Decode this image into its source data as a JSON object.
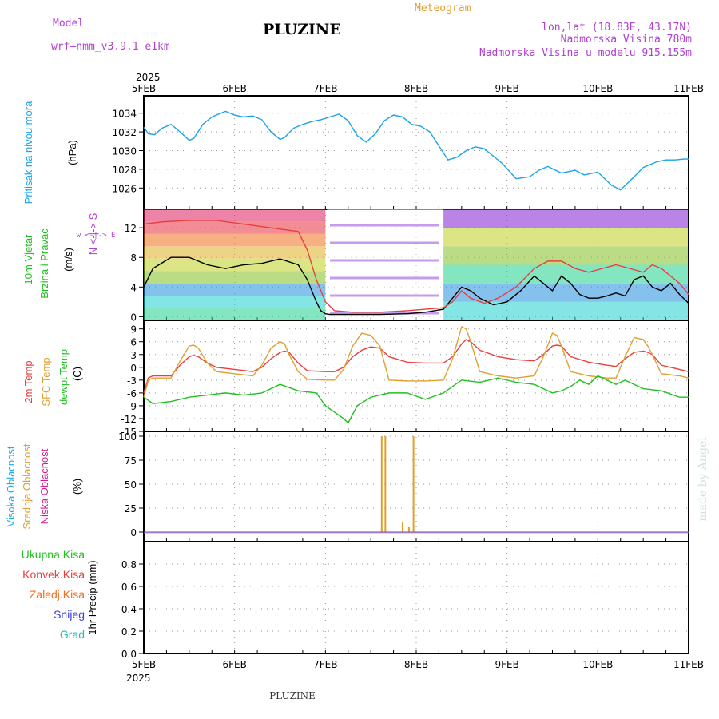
{
  "header": {
    "model_label": "Model",
    "model_name": "wrf—nmm_v3.9.1 e1km",
    "station": "PLUZINE",
    "product": "Meteogram",
    "lonlat": "lon,lat (18.83E, 43.17N)",
    "altitude": "Nadmorska Visina 780m",
    "model_altitude": "Nadmorska Visina u modelu 915.155m",
    "year_top": "2025",
    "year_bottom": "2025",
    "footer_station": "PLUZINE",
    "credit": "made by Angel"
  },
  "colors": {
    "pressure": "#1aa3e8",
    "temp2m": "#e84040",
    "sfc_temp": "#e0a030",
    "dewpt": "#20c020",
    "purple": "#b040d0",
    "high_cloud": "#1ab0d8",
    "mid_cloud": "#e0a030",
    "low_cloud": "#d02090",
    "total_precip": "#20c020",
    "conv_precip": "#e84040",
    "frozen_precip": "#f07020",
    "snow": "#4040e0",
    "hail": "#20c0b0"
  },
  "labels": {
    "pressure_title": "Pritisak na nivou mora",
    "pressure_unit": "(hPa)",
    "wind_title_1": "10m Vjetar",
    "wind_title_2": "Brzina i Pravac",
    "wind_unit": "(m/s)",
    "wind_compass": "w <-|-> E",
    "wind_compass_ns": "N <-|-> S",
    "temp_2m": "2m Temp",
    "temp_sfc": "SFC Temp",
    "temp_dew": "dewpt Temp",
    "temp_unit": "(C)",
    "cloud_high": "Visoka Oblacnost",
    "cloud_mid": "Srednja Oblacnost",
    "cloud_low": "Niska Oblacnost",
    "cloud_unit": "(%)",
    "precip_total": "Ukupna Kisa",
    "precip_conv": "Konvek.Kisa",
    "precip_frozen": "Zaledj.Kisa",
    "precip_snow": "Snijeg",
    "precip_hail": "Grad",
    "precip_unit": "1hr Precip (mm)"
  },
  "chart_data": {
    "type": "line",
    "x_days": [
      "5FEB",
      "6FEB",
      "7FEB",
      "8FEB",
      "9FEB",
      "10FEB",
      "11FEB"
    ],
    "panels": [
      {
        "name": "pressure",
        "ylim": [
          1025,
          1035
        ],
        "yticks": [
          1026,
          1028,
          1030,
          1032,
          1034
        ],
        "series": [
          {
            "name": "pressure",
            "x": [
              0,
              0.05,
              0.12,
              0.2,
              0.3,
              0.4,
              0.5,
              0.55,
              0.65,
              0.75,
              0.9,
              1.0,
              1.1,
              1.2,
              1.3,
              1.4,
              1.5,
              1.55,
              1.65,
              1.75,
              1.85,
              1.95,
              2.05,
              2.15,
              2.25,
              2.35,
              2.45,
              2.55,
              2.65,
              2.75,
              2.85,
              2.95,
              3.05,
              3.15,
              3.25,
              3.35,
              3.45,
              3.55,
              3.65,
              3.75,
              3.85,
              3.95,
              4.1,
              4.25,
              4.35,
              4.45,
              4.6,
              4.75,
              4.85,
              5.0,
              5.15,
              5.25,
              5.4,
              5.5,
              5.65,
              5.75,
              5.85,
              5.95,
              6.0
            ],
            "values": [
              1032.5,
              1031.8,
              1031.7,
              1032.4,
              1032.8,
              1032.0,
              1031.1,
              1031.3,
              1032.8,
              1033.6,
              1034.2,
              1033.8,
              1033.6,
              1033.7,
              1033.3,
              1032.0,
              1031.2,
              1031.4,
              1032.4,
              1032.8,
              1033.1,
              1033.3,
              1033.6,
              1033.9,
              1033.2,
              1031.6,
              1030.9,
              1031.8,
              1033.2,
              1033.8,
              1033.6,
              1032.8,
              1032.6,
              1032.0,
              1030.5,
              1029.0,
              1029.3,
              1030.0,
              1030.4,
              1030.2,
              1029.4,
              1028.6,
              1027.0,
              1027.2,
              1027.9,
              1028.3,
              1027.6,
              1027.9,
              1027.4,
              1027.7,
              1026.3,
              1025.8,
              1027.2,
              1028.2,
              1028.8,
              1029.0,
              1029.0,
              1029.1,
              1029.1
            ]
          }
        ]
      },
      {
        "name": "wind",
        "ylim": [
          -0.5,
          14.5
        ],
        "yticks": [
          0,
          4,
          8,
          12
        ],
        "series": [
          {
            "name": "wind_speed_black",
            "x": [
              0,
              0.1,
              0.3,
              0.5,
              0.7,
              0.9,
              1.1,
              1.3,
              1.5,
              1.7,
              1.8,
              1.9,
              1.95,
              2.0,
              2.05,
              2.3,
              2.6,
              2.9,
              3.1,
              3.3,
              3.4,
              3.5,
              3.6,
              3.7,
              3.85,
              4.0,
              4.15,
              4.3,
              4.4,
              4.5,
              4.6,
              4.7,
              4.8,
              4.9,
              5.0,
              5.1,
              5.2,
              5.3,
              5.4,
              5.5,
              5.6,
              5.7,
              5.8,
              5.9,
              6.0
            ],
            "values": [
              4.0,
              6.5,
              8.0,
              8.0,
              7.0,
              6.5,
              7.0,
              7.2,
              7.8,
              7.0,
              5.0,
              2.0,
              0.8,
              0.4,
              0.3,
              0.3,
              0.3,
              0.4,
              0.6,
              1.0,
              2.5,
              4.0,
              3.5,
              2.5,
              1.6,
              2.0,
              3.5,
              5.5,
              4.5,
              3.5,
              5.5,
              4.5,
              3.0,
              2.5,
              2.5,
              2.8,
              3.2,
              2.8,
              5.0,
              5.5,
              4.0,
              3.5,
              4.5,
              3.0,
              1.8
            ]
          },
          {
            "name": "wind_speed_red",
            "x": [
              0,
              0.2,
              0.5,
              0.8,
              1.1,
              1.4,
              1.7,
              1.8,
              1.9,
              2.0,
              2.1,
              2.3,
              2.6,
              2.9,
              3.1,
              3.3,
              3.4,
              3.5,
              3.6,
              3.75,
              3.9,
              4.1,
              4.3,
              4.45,
              4.6,
              4.75,
              4.9,
              5.05,
              5.2,
              5.35,
              5.5,
              5.6,
              5.7,
              5.8,
              5.9,
              6.0
            ],
            "values": [
              12.5,
              12.8,
              13.0,
              13.0,
              12.5,
              12.0,
              11.5,
              9.0,
              5.0,
              2.0,
              0.8,
              0.6,
              0.6,
              0.8,
              1.0,
              1.2,
              2.0,
              3.5,
              2.5,
              1.8,
              2.5,
              4.0,
              6.5,
              7.5,
              7.5,
              6.5,
              6.0,
              6.5,
              7.0,
              6.5,
              6.0,
              7.0,
              6.5,
              5.5,
              4.5,
              3.0
            ]
          }
        ]
      },
      {
        "name": "temperature",
        "ylim": [
          -15,
          11
        ],
        "yticks": [
          -15,
          -12,
          -9,
          -6,
          -3,
          0,
          3,
          6,
          9
        ],
        "series": [
          {
            "name": "2m Temp",
            "x": [
              0,
              0.05,
              0.1,
              0.3,
              0.4,
              0.5,
              0.55,
              0.6,
              0.7,
              0.8,
              1.0,
              1.2,
              1.3,
              1.4,
              1.5,
              1.55,
              1.6,
              1.7,
              1.8,
              2.0,
              2.1,
              2.2,
              2.3,
              2.4,
              2.5,
              2.6,
              2.7,
              2.9,
              3.1,
              3.3,
              3.4,
              3.5,
              3.55,
              3.6,
              3.7,
              3.9,
              4.1,
              4.3,
              4.4,
              4.5,
              4.55,
              4.6,
              4.7,
              4.9,
              5.1,
              5.2,
              5.3,
              5.4,
              5.5,
              5.55,
              5.6,
              5.7,
              5.9,
              6.0
            ],
            "values": [
              -6,
              -2.5,
              -2.0,
              -2.0,
              0.5,
              2.5,
              2.8,
              2.5,
              1.0,
              0,
              -0.5,
              -1.0,
              0,
              2.0,
              3.5,
              3.8,
              3.5,
              1.0,
              -0.8,
              -1.0,
              -1.0,
              0,
              2.5,
              4.0,
              4.8,
              4.5,
              2.5,
              1.2,
              1.0,
              1.0,
              2.5,
              5.5,
              6.5,
              6.0,
              4.0,
              2.5,
              1.8,
              1.5,
              3.0,
              5.0,
              5.2,
              5.0,
              2.5,
              1.2,
              0.5,
              0.2,
              2.0,
              3.5,
              3.8,
              3.5,
              3.0,
              0.5,
              -0.5,
              -1.0
            ]
          },
          {
            "name": "SFC Temp",
            "x": [
              0,
              0.05,
              0.1,
              0.3,
              0.4,
              0.5,
              0.55,
              0.6,
              0.7,
              0.8,
              1.0,
              1.2,
              1.3,
              1.4,
              1.5,
              1.55,
              1.6,
              1.7,
              1.8,
              2.0,
              2.1,
              2.2,
              2.3,
              2.4,
              2.5,
              2.6,
              2.7,
              2.9,
              3.1,
              3.3,
              3.4,
              3.5,
              3.55,
              3.6,
              3.7,
              3.9,
              4.1,
              4.3,
              4.4,
              4.5,
              4.55,
              4.6,
              4.7,
              4.9,
              5.1,
              5.2,
              5.3,
              5.4,
              5.5,
              5.55,
              5.6,
              5.7,
              5.9,
              6.0
            ],
            "values": [
              -7,
              -3.0,
              -2.5,
              -2.5,
              1.5,
              5.0,
              5.2,
              4.5,
              1.0,
              -1.0,
              -1.5,
              -2.0,
              0.5,
              4.5,
              6.0,
              5.5,
              3.0,
              -1.0,
              -2.8,
              -3.0,
              -3.0,
              -0.5,
              5.0,
              8.0,
              7.5,
              5.0,
              -3.0,
              -3.2,
              -3.2,
              -3.0,
              2.0,
              9.5,
              9.0,
              6.0,
              -1.0,
              -2.0,
              -2.5,
              -2.0,
              2.5,
              8.0,
              7.5,
              5.0,
              -1.0,
              -2.0,
              -2.5,
              -2.5,
              2.5,
              7.0,
              6.5,
              5.0,
              3.0,
              -1.5,
              -2.0,
              -2.5
            ]
          },
          {
            "name": "dewpt Temp",
            "x": [
              0,
              0.1,
              0.3,
              0.5,
              0.7,
              0.9,
              1.1,
              1.3,
              1.5,
              1.7,
              1.9,
              2.0,
              2.1,
              2.2,
              2.25,
              2.35,
              2.5,
              2.7,
              2.9,
              3.1,
              3.3,
              3.4,
              3.5,
              3.7,
              3.9,
              4.1,
              4.3,
              4.5,
              4.6,
              4.7,
              4.8,
              4.9,
              5.0,
              5.1,
              5.2,
              5.3,
              5.5,
              5.7,
              5.9,
              6.0
            ],
            "values": [
              -7,
              -8.5,
              -8.0,
              -7.0,
              -6.5,
              -6.0,
              -6.5,
              -6.0,
              -4.0,
              -5.5,
              -6.0,
              -9.0,
              -10.5,
              -12.0,
              -13.0,
              -9.0,
              -7.0,
              -6.0,
              -6.0,
              -7.5,
              -6.0,
              -4.5,
              -3.0,
              -3.5,
              -2.5,
              -3.5,
              -4.0,
              -6.0,
              -5.5,
              -4.5,
              -3.0,
              -4.0,
              -2.0,
              -3.0,
              -4.0,
              -3.0,
              -5.0,
              -5.5,
              -7.0,
              -7.0
            ]
          }
        ]
      },
      {
        "name": "clouds",
        "ylim": [
          -10,
          105
        ],
        "yticks": [
          0,
          25,
          50,
          75,
          100
        ],
        "bars": [
          {
            "x": 2.62,
            "value": 100
          },
          {
            "x": 2.66,
            "value": 100
          },
          {
            "x": 2.85,
            "value": 10
          },
          {
            "x": 2.92,
            "value": 5
          },
          {
            "x": 2.97,
            "value": 100
          }
        ]
      },
      {
        "name": "precip",
        "ylim": [
          0,
          1.0
        ],
        "yticks": [
          0,
          0.2,
          0.4,
          0.6,
          0.8
        ],
        "series": []
      }
    ]
  }
}
